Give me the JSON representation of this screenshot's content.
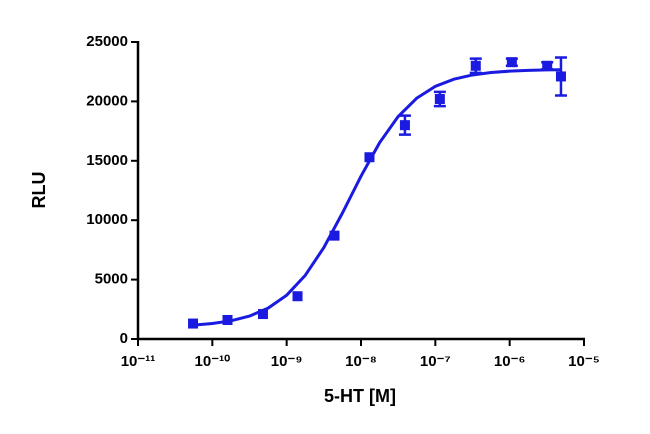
{
  "chart_data": {
    "type": "scatter",
    "xlabel": "5-HT [M]",
    "ylabel": "RLU",
    "log_x": true,
    "xlim": [
      1e-11,
      1e-05
    ],
    "xticks": [
      {
        "value": 1e-11,
        "label": "10⁻¹¹"
      },
      {
        "value": 1e-10,
        "label": "10⁻¹⁰"
      },
      {
        "value": 1e-09,
        "label": "10⁻⁹"
      },
      {
        "value": 1e-08,
        "label": "10⁻⁸"
      },
      {
        "value": 1e-07,
        "label": "10⁻⁷"
      },
      {
        "value": 1e-06,
        "label": "10⁻⁶"
      },
      {
        "value": 1e-05,
        "label": "10⁻⁵"
      }
    ],
    "ylim": [
      0,
      25000
    ],
    "yticks": [
      0,
      5000,
      10000,
      15000,
      20000,
      25000
    ],
    "color": "#1a1ae0",
    "series": [
      {
        "kind": "points",
        "x": [
          5.5e-11,
          1.6e-10,
          4.8e-10,
          1.4e-09,
          4.4e-09,
          1.3e-08,
          3.9e-08,
          1.15e-07,
          3.5e-07,
          1.07e-06,
          3.2e-06,
          4.9e-06
        ],
        "values": [
          1300,
          1600,
          2100,
          3600,
          8700,
          15300,
          18000,
          20200,
          23000,
          23300,
          23000,
          22100
        ],
        "errors": [
          null,
          null,
          null,
          null,
          null,
          null,
          800,
          600,
          600,
          300,
          300,
          1600
        ]
      },
      {
        "kind": "curve",
        "x": [
          5.623e-11,
          1e-10,
          1.778e-10,
          3.162e-10,
          5.623e-10,
          1e-09,
          1.778e-09,
          3.162e-09,
          5.623e-09,
          1e-08,
          1.778e-08,
          3.162e-08,
          5.623e-08,
          1e-07,
          1.778e-07,
          3.162e-07,
          5.623e-07,
          1e-06,
          1.778e-06,
          3.162e-06,
          5.012e-06
        ],
        "values": [
          1171,
          1302,
          1532,
          1927,
          2597,
          3686,
          5357,
          7698,
          10606,
          13705,
          16522,
          18729,
          20272,
          21265,
          21869,
          22225,
          22430,
          22547,
          22614,
          22651,
          22669
        ]
      }
    ]
  }
}
